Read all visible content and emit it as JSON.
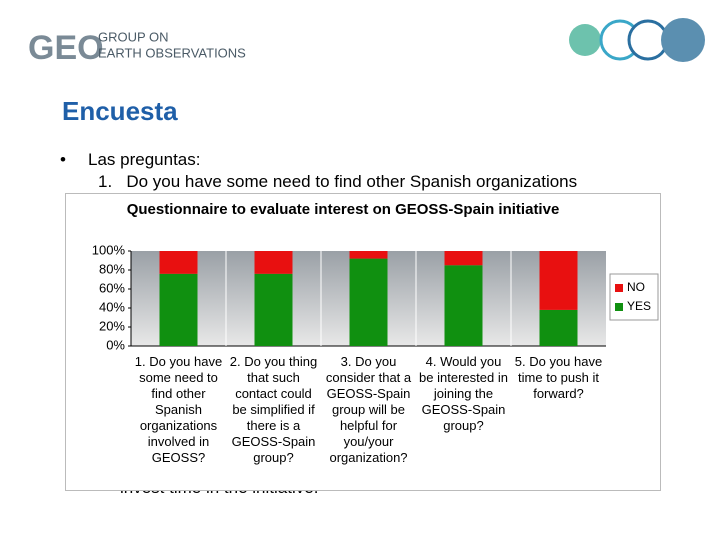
{
  "header": {
    "logo": "GEO",
    "org_line1": "GROUP ON",
    "org_line2": "EARTH OBSERVATIONS"
  },
  "title": "Encuesta",
  "bullet": "•",
  "intro": "Las preguntas:",
  "question1": "1.   Do you have some need to find other Spanish organizations",
  "footer_line": "invest time in the initiative.",
  "chart_data": {
    "type": "stacked_bar",
    "title": "Questionnaire to evaluate interest on GEOSS-Spain initiative",
    "categories": [
      "1. Do you have some need to find other Spanish organizations involved in GEOSS?",
      "2. Do you thing that such contact could be simplified if there is a GEOSS-Spain group?",
      "3. Do you consider that a GEOSS-Spain group will be helpful for you/your organization?",
      "4. Would you be interested in joining the GEOSS-Spain group?",
      "5. Do you have time to push it forward?"
    ],
    "series": [
      {
        "name": "YES",
        "color": "#109010",
        "values": [
          76,
          76,
          92,
          85,
          38
        ]
      },
      {
        "name": "NO",
        "color": "#e81010",
        "values": [
          24,
          24,
          8,
          15,
          62
        ]
      }
    ],
    "ylim": [
      0,
      100
    ],
    "yticks": [
      {
        "value": 0,
        "label": "0%"
      },
      {
        "value": 20,
        "label": "20%"
      },
      {
        "value": 40,
        "label": "40%"
      },
      {
        "value": 60,
        "label": "60%"
      },
      {
        "value": 80,
        "label": "80%"
      },
      {
        "value": 100,
        "label": "100%"
      }
    ],
    "legend": "right"
  }
}
